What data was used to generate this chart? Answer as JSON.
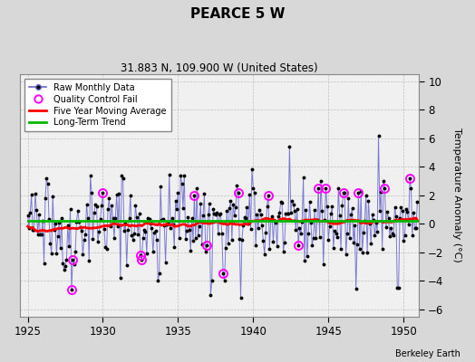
{
  "title": "PEARCE 5 W",
  "subtitle": "31.883 N, 109.900 W (United States)",
  "ylabel": "Temperature Anomaly (°C)",
  "credit": "Berkeley Earth",
  "xlim": [
    1924.5,
    1951.0
  ],
  "ylim": [
    -6.5,
    10.5
  ],
  "yticks": [
    -6,
    -4,
    -2,
    0,
    2,
    4,
    6,
    8,
    10
  ],
  "xticks": [
    1925,
    1930,
    1935,
    1940,
    1945,
    1950
  ],
  "bg_color": "#d8d8d8",
  "plot_bg_color": "#f0f0f0",
  "raw_line_color": "#6666cc",
  "raw_marker_color": "#000000",
  "moving_avg_color": "#ff0000",
  "trend_color": "#00bb00",
  "qc_color": "#ff00ff",
  "trend_value": 0.18
}
